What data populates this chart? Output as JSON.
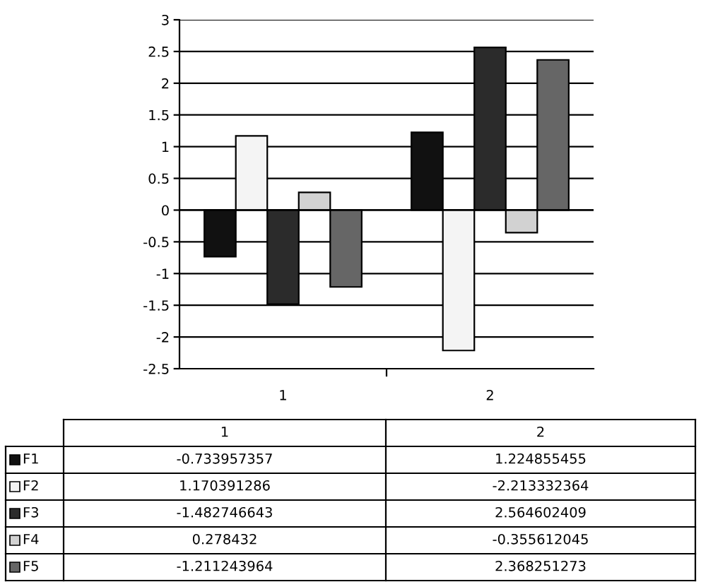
{
  "chart_data": {
    "type": "bar",
    "categories": [
      "1",
      "2"
    ],
    "series": [
      {
        "name": "F1",
        "color": "#111111",
        "values": [
          -0.733957357,
          1.224855455
        ]
      },
      {
        "name": "F2",
        "color": "#f4f4f4",
        "values": [
          1.170391286,
          -2.213332364
        ]
      },
      {
        "name": "F3",
        "color": "#2b2b2b",
        "values": [
          -1.482746643,
          2.564602409
        ]
      },
      {
        "name": "F4",
        "color": "#d2d2d2",
        "values": [
          0.278432,
          -0.355612045
        ]
      },
      {
        "name": "F5",
        "color": "#666666",
        "values": [
          -1.211243964,
          2.368251273
        ]
      }
    ],
    "ylim": [
      -2.5,
      3
    ],
    "yticks": [
      -2.5,
      -2,
      -1.5,
      -1,
      -0.5,
      0,
      0.5,
      1,
      1.5,
      2,
      2.5,
      3
    ],
    "grid": "y",
    "legend": "bottom",
    "data_labels": true
  }
}
